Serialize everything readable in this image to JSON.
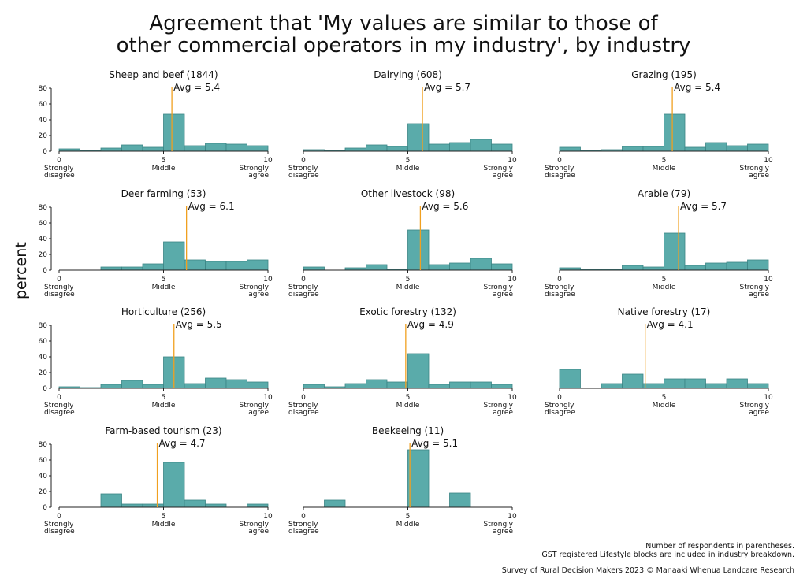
{
  "title_lines": [
    "Agreement that 'My values are similar to those of",
    "other commercial operators in my industry', by industry"
  ],
  "ylabel": "percent",
  "footnotes": {
    "note1": "Number of respondents in parentheses.",
    "note2": "GST registered Lifestyle blocks are included in industry breakdown.",
    "source": "Survey of Rural Decision Makers 2023 © Manaaki Whenua Landcare Research"
  },
  "colors": {
    "bar": "#5aabaa",
    "bar_edge": "#3b8585",
    "avg_line": "#f0a020"
  },
  "chart_data": [
    {
      "type": "bar",
      "title": "Sheep and beef (1844)",
      "avg_label": "Avg = 5.4",
      "avg": 5.4,
      "categories": [
        0,
        1,
        2,
        3,
        4,
        5,
        6,
        7,
        8,
        9,
        10
      ],
      "values": [
        3,
        1,
        4,
        8,
        5,
        47,
        7,
        10,
        9,
        7,
        null
      ],
      "ylim": [
        0,
        80
      ],
      "yticks": [
        0,
        20,
        40,
        60,
        80
      ],
      "xticks": [
        0,
        5,
        10
      ],
      "xlabels": [
        "Strongly disagree",
        "Middle",
        "Strongly agree"
      ]
    },
    {
      "type": "bar",
      "title": "Dairying (608)",
      "avg_label": "Avg = 5.7",
      "avg": 5.7,
      "categories": [
        0,
        1,
        2,
        3,
        4,
        5,
        6,
        7,
        8,
        9,
        10
      ],
      "values": [
        2,
        1,
        4,
        8,
        6,
        35,
        9,
        11,
        15,
        9,
        null
      ],
      "ylim": [
        0,
        80
      ],
      "yticks": [
        0,
        20,
        40,
        60,
        80
      ],
      "xticks": [
        0,
        5,
        10
      ],
      "xlabels": [
        "Strongly disagree",
        "Middle",
        "Strongly agree"
      ]
    },
    {
      "type": "bar",
      "title": "Grazing (195)",
      "avg_label": "Avg = 5.4",
      "avg": 5.4,
      "categories": [
        0,
        1,
        2,
        3,
        4,
        5,
        6,
        7,
        8,
        9,
        10
      ],
      "values": [
        5,
        1,
        2,
        6,
        6,
        47,
        5,
        11,
        7,
        9,
        null
      ],
      "ylim": [
        0,
        80
      ],
      "yticks": [
        0,
        20,
        40,
        60,
        80
      ],
      "xticks": [
        0,
        5,
        10
      ],
      "xlabels": [
        "Strongly disagree",
        "Middle",
        "Strongly agree"
      ]
    },
    {
      "type": "bar",
      "title": "Deer farming (53)",
      "avg_label": "Avg = 6.1",
      "avg": 6.1,
      "categories": [
        0,
        1,
        2,
        3,
        4,
        5,
        6,
        7,
        8,
        9,
        10
      ],
      "values": [
        0,
        0,
        4,
        4,
        8,
        36,
        13,
        11,
        11,
        13,
        null
      ],
      "ylim": [
        0,
        80
      ],
      "yticks": [
        0,
        20,
        40,
        60,
        80
      ],
      "xticks": [
        0,
        5,
        10
      ],
      "xlabels": [
        "Strongly disagree",
        "Middle",
        "Strongly agree"
      ]
    },
    {
      "type": "bar",
      "title": "Other livestock (98)",
      "avg_label": "Avg = 5.6",
      "avg": 5.6,
      "categories": [
        0,
        1,
        2,
        3,
        4,
        5,
        6,
        7,
        8,
        9,
        10
      ],
      "values": [
        4,
        0,
        3,
        7,
        1,
        51,
        7,
        9,
        15,
        8,
        null
      ],
      "ylim": [
        0,
        80
      ],
      "yticks": [
        0,
        20,
        40,
        60,
        80
      ],
      "xticks": [
        0,
        5,
        10
      ],
      "xlabels": [
        "Strongly disagree",
        "Middle",
        "Strongly agree"
      ]
    },
    {
      "type": "bar",
      "title": "Arable (79)",
      "avg_label": "Avg = 5.7",
      "avg": 5.7,
      "categories": [
        0,
        1,
        2,
        3,
        4,
        5,
        6,
        7,
        8,
        9,
        10
      ],
      "values": [
        3,
        1,
        1,
        6,
        4,
        47,
        6,
        9,
        10,
        13,
        null
      ],
      "ylim": [
        0,
        80
      ],
      "yticks": [
        0,
        20,
        40,
        60,
        80
      ],
      "xticks": [
        0,
        5,
        10
      ],
      "xlabels": [
        "Strongly disagree",
        "Middle",
        "Strongly agree"
      ]
    },
    {
      "type": "bar",
      "title": "Horticulture (256)",
      "avg_label": "Avg = 5.5",
      "avg": 5.5,
      "categories": [
        0,
        1,
        2,
        3,
        4,
        5,
        6,
        7,
        8,
        9,
        10
      ],
      "values": [
        2,
        1,
        5,
        10,
        5,
        40,
        6,
        13,
        11,
        8,
        null
      ],
      "ylim": [
        0,
        80
      ],
      "yticks": [
        0,
        20,
        40,
        60,
        80
      ],
      "xticks": [
        0,
        5,
        10
      ],
      "xlabels": [
        "Strongly disagree",
        "Middle",
        "Strongly agree"
      ]
    },
    {
      "type": "bar",
      "title": "Exotic forestry (132)",
      "avg_label": "Avg = 4.9",
      "avg": 4.9,
      "categories": [
        0,
        1,
        2,
        3,
        4,
        5,
        6,
        7,
        8,
        9,
        10
      ],
      "values": [
        5,
        2,
        6,
        11,
        8,
        44,
        5,
        8,
        8,
        5,
        null
      ],
      "ylim": [
        0,
        80
      ],
      "yticks": [
        0,
        20,
        40,
        60,
        80
      ],
      "xticks": [
        0,
        5,
        10
      ],
      "xlabels": [
        "Strongly disagree",
        "Middle",
        "Strongly agree"
      ]
    },
    {
      "type": "bar",
      "title": "Native forestry (17)",
      "avg_label": "Avg = 4.1",
      "avg": 4.1,
      "categories": [
        0,
        1,
        2,
        3,
        4,
        5,
        6,
        7,
        8,
        9,
        10
      ],
      "values": [
        24,
        0,
        6,
        18,
        6,
        12,
        12,
        6,
        12,
        6,
        null
      ],
      "ylim": [
        0,
        80
      ],
      "yticks": [
        0,
        20,
        40,
        60,
        80
      ],
      "xticks": [
        0,
        5,
        10
      ],
      "xlabels": [
        "Strongly disagree",
        "Middle",
        "Strongly agree"
      ]
    },
    {
      "type": "bar",
      "title": "Farm-based tourism (23)",
      "avg_label": "Avg = 4.7",
      "avg": 4.7,
      "categories": [
        0,
        1,
        2,
        3,
        4,
        5,
        6,
        7,
        8,
        9,
        10
      ],
      "values": [
        0,
        0,
        17,
        4,
        4,
        57,
        9,
        4,
        0,
        4,
        null
      ],
      "ylim": [
        0,
        80
      ],
      "yticks": [
        0,
        20,
        40,
        60,
        80
      ],
      "xticks": [
        0,
        5,
        10
      ],
      "xlabels": [
        "Strongly disagree",
        "Middle",
        "Strongly agree"
      ]
    },
    {
      "type": "bar",
      "title": "Beekeeing (11)",
      "avg_label": "Avg = 5.1",
      "avg": 5.1,
      "categories": [
        0,
        1,
        2,
        3,
        4,
        5,
        6,
        7,
        8,
        9,
        10
      ],
      "values": [
        0,
        9,
        0,
        0,
        0,
        73,
        0,
        18,
        0,
        0,
        null
      ],
      "ylim": [
        0,
        80
      ],
      "yticks": [
        0,
        20,
        40,
        60,
        80
      ],
      "xticks": [
        0,
        5,
        10
      ],
      "xlabels": [
        "Strongly disagree",
        "Middle",
        "Strongly agree"
      ]
    }
  ]
}
